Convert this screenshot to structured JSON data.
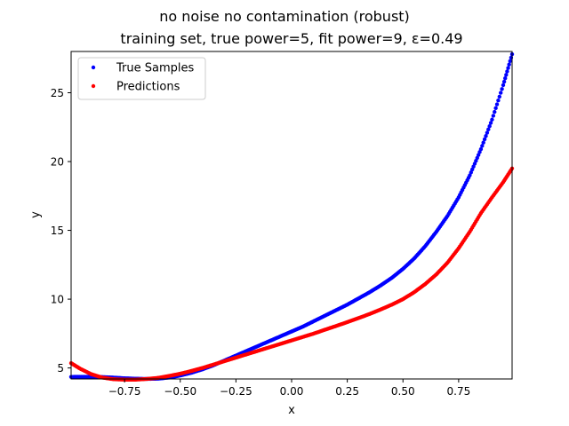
{
  "chart_data": {
    "type": "scatter",
    "title": "no noise no contamination (robust)",
    "subtitle": "training set, true power=5, fit power=9, ε=0.49",
    "xlabel": "x",
    "ylabel": "y",
    "xlim": [
      -0.99,
      0.99
    ],
    "ylim": [
      4.2,
      28.0
    ],
    "xticks": [
      -0.75,
      -0.5,
      -0.25,
      0.0,
      0.25,
      0.5,
      0.75
    ],
    "xtick_labels": [
      "−0.75",
      "−0.50",
      "−0.25",
      "0.00",
      "0.25",
      "0.50",
      "0.75"
    ],
    "yticks": [
      5,
      10,
      15,
      20,
      25
    ],
    "ytick_labels": [
      "5",
      "10",
      "15",
      "20",
      "25"
    ],
    "legend_position": "top-left",
    "series": [
      {
        "name": "True Samples",
        "color": "#0000ff",
        "x": [
          -0.99,
          -0.95,
          -0.9,
          -0.85,
          -0.8,
          -0.75,
          -0.7,
          -0.65,
          -0.6,
          -0.55,
          -0.5,
          -0.45,
          -0.4,
          -0.35,
          -0.3,
          -0.25,
          -0.2,
          -0.15,
          -0.1,
          -0.05,
          0.0,
          0.05,
          0.1,
          0.15,
          0.2,
          0.25,
          0.3,
          0.35,
          0.4,
          0.45,
          0.5,
          0.55,
          0.6,
          0.65,
          0.7,
          0.75,
          0.8,
          0.85,
          0.9,
          0.95,
          0.99
        ],
        "y": [
          4.35,
          4.36,
          4.36,
          4.34,
          4.3,
          4.25,
          4.22,
          4.2,
          4.22,
          4.3,
          4.45,
          4.65,
          4.9,
          5.2,
          5.55,
          5.9,
          6.25,
          6.6,
          6.95,
          7.3,
          7.65,
          8.0,
          8.4,
          8.8,
          9.2,
          9.6,
          10.05,
          10.5,
          11.0,
          11.55,
          12.2,
          12.95,
          13.85,
          14.9,
          16.05,
          17.4,
          19.0,
          20.9,
          23.05,
          25.55,
          27.8
        ]
      },
      {
        "name": "Predictions",
        "color": "#ff0000",
        "x": [
          -0.99,
          -0.95,
          -0.9,
          -0.85,
          -0.8,
          -0.75,
          -0.7,
          -0.65,
          -0.6,
          -0.55,
          -0.5,
          -0.45,
          -0.4,
          -0.35,
          -0.3,
          -0.25,
          -0.2,
          -0.15,
          -0.1,
          -0.05,
          0.0,
          0.05,
          0.1,
          0.15,
          0.2,
          0.25,
          0.3,
          0.35,
          0.4,
          0.45,
          0.5,
          0.55,
          0.6,
          0.65,
          0.7,
          0.75,
          0.8,
          0.85,
          0.9,
          0.95,
          0.99
        ],
        "y": [
          5.35,
          4.95,
          4.55,
          4.3,
          4.18,
          4.15,
          4.15,
          4.2,
          4.28,
          4.42,
          4.58,
          4.78,
          5.0,
          5.25,
          5.5,
          5.75,
          6.0,
          6.25,
          6.5,
          6.75,
          7.0,
          7.25,
          7.5,
          7.78,
          8.05,
          8.33,
          8.62,
          8.92,
          9.25,
          9.6,
          10.0,
          10.5,
          11.1,
          11.8,
          12.65,
          13.7,
          14.9,
          16.25,
          17.4,
          18.5,
          19.5
        ]
      }
    ]
  }
}
